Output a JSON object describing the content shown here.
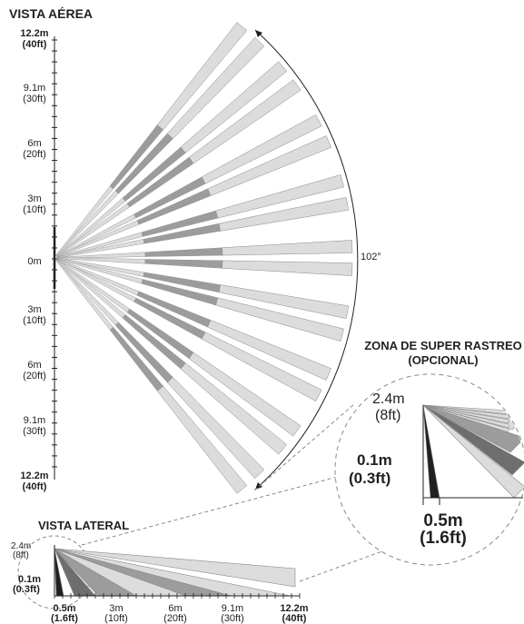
{
  "top_view": {
    "title": "VISTA AÉREA",
    "angle_label": "102°",
    "y_labels": [
      {
        "m": "12.2m",
        "ft": "(40ft)",
        "bold": true
      },
      {
        "m": "9.1m",
        "ft": "(30ft)",
        "bold": false
      },
      {
        "m": "6m",
        "ft": "(20ft)",
        "bold": false
      },
      {
        "m": "3m",
        "ft": "(10ft)",
        "bold": false
      },
      {
        "m": "0m",
        "ft": "",
        "bold": false
      },
      {
        "m": "3m",
        "ft": "(10ft)",
        "bold": false
      },
      {
        "m": "6m",
        "ft": "(20ft)",
        "bold": false
      },
      {
        "m": "9.1m",
        "ft": "(30ft)",
        "bold": false
      },
      {
        "m": "12.2m",
        "ft": "(40ft)",
        "bold": true
      }
    ]
  },
  "zoom": {
    "title_line1": "ZONA DE SUPER RASTREO",
    "title_line2": "(OPCIONAL)",
    "height_m": "2.4m",
    "height_ft": "(8ft)",
    "low_m": "0.1m",
    "low_ft": "(0.3ft)",
    "dist_m": "0.5m",
    "dist_ft": "(1.6ft)"
  },
  "side_view": {
    "title": "VISTA LATERAL",
    "height_m": "2.4m",
    "height_ft": "(8ft)",
    "low_m": "0.1m",
    "low_ft": "(0.3ft)",
    "x_labels": [
      {
        "m": "0.5m",
        "ft": "(1.6ft)",
        "bold": true
      },
      {
        "m": "3m",
        "ft": "(10ft)",
        "bold": false
      },
      {
        "m": "6m",
        "ft": "(20ft)",
        "bold": false
      },
      {
        "m": "9.1m",
        "ft": "(30ft)",
        "bold": false
      },
      {
        "m": "12.2m",
        "ft": "(40ft)",
        "bold": true
      }
    ]
  },
  "colors": {
    "beam_light": "#dcdcdc",
    "beam_mid": "#9c9c9c",
    "beam_dark": "#6e6e6e",
    "beam_black": "#231f20",
    "stroke": "#888888"
  }
}
